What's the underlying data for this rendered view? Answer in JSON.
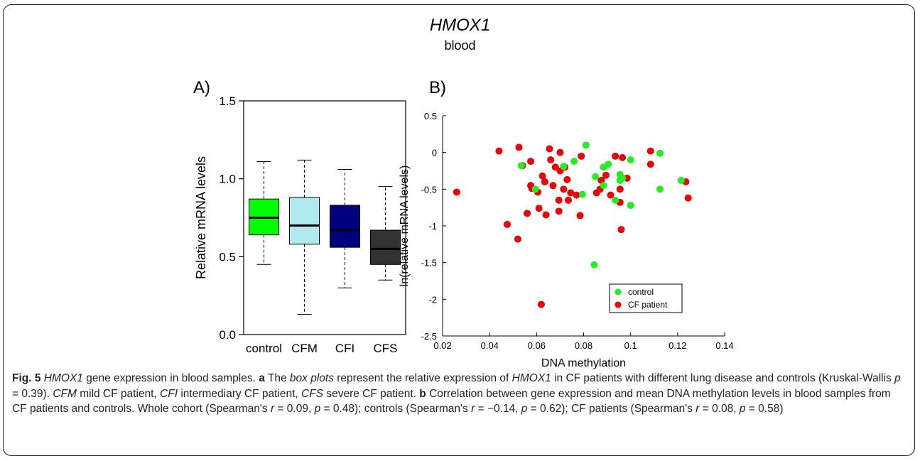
{
  "figure": {
    "gene_title": "HMOX1",
    "sample_title": "blood",
    "panel_a_label": "A)",
    "panel_b_label": "B)"
  },
  "colors": {
    "control_box": "#00ff00",
    "cfm_box": "#b0eaee",
    "cfi_box": "#00007f",
    "cfs_box": "#333333",
    "control_points": "#22ee22",
    "cf_points": "#ee0000"
  },
  "chart_data": [
    {
      "type": "box",
      "title": "",
      "xlabel": "",
      "ylabel": "Relative mRNA levels",
      "ylim": [
        0,
        1.5
      ],
      "yticks": [
        "0.0",
        "0.5",
        "1.0",
        "1.5"
      ],
      "categories": [
        "control",
        "CFM",
        "CFI",
        "CFS"
      ],
      "boxes": [
        {
          "name": "control",
          "whisker_low": 0.45,
          "q1": 0.64,
          "median": 0.75,
          "q3": 0.87,
          "whisker_high": 1.11,
          "color": "#00ff00"
        },
        {
          "name": "CFM",
          "whisker_low": 0.13,
          "q1": 0.58,
          "median": 0.7,
          "q3": 0.88,
          "whisker_high": 1.12,
          "color": "#b0eaee"
        },
        {
          "name": "CFI",
          "whisker_low": 0.3,
          "q1": 0.56,
          "median": 0.67,
          "q3": 0.83,
          "whisker_high": 1.06,
          "color": "#00007f"
        },
        {
          "name": "CFS",
          "whisker_low": 0.35,
          "q1": 0.45,
          "median": 0.55,
          "q3": 0.67,
          "whisker_high": 0.95,
          "color": "#333333"
        }
      ],
      "grid": false
    },
    {
      "type": "scatter",
      "title": "",
      "xlabel": "DNA methylation",
      "ylabel": "ln(relative mRNA levels)",
      "xlim": [
        0.02,
        0.14
      ],
      "ylim": [
        -2.5,
        0.5
      ],
      "xticks": [
        "0.02",
        "0.04",
        "0.06",
        "0.08",
        "0.1",
        "0.12",
        "0.14"
      ],
      "yticks": [
        "-2.5",
        "-2",
        "-1.5",
        "-1",
        "-0.5",
        "0",
        "0.5"
      ],
      "legend_position": "bottom-right",
      "grid": false,
      "series": [
        {
          "name": "control",
          "color": "#22ee22",
          "points": [
            [
              0.0535,
              -0.18
            ],
            [
              0.0595,
              -0.5
            ],
            [
              0.0715,
              -0.19
            ],
            [
              0.076,
              -0.12
            ],
            [
              0.0795,
              -0.57
            ],
            [
              0.081,
              0.1
            ],
            [
              0.085,
              -0.33
            ],
            [
              0.0885,
              -0.45
            ],
            [
              0.0885,
              -0.2
            ],
            [
              0.0905,
              -0.16
            ],
            [
              0.0935,
              -0.65
            ],
            [
              0.0955,
              -0.3
            ],
            [
              0.0965,
              -0.35
            ],
            [
              0.0955,
              -0.38
            ],
            [
              0.1,
              -0.72
            ],
            [
              0.1,
              -0.1
            ],
            [
              0.1125,
              -0.01
            ],
            [
              0.1125,
              -0.5
            ],
            [
              0.1215,
              -0.38
            ],
            [
              0.0845,
              -1.53
            ]
          ]
        },
        {
          "name": "CF patient",
          "color": "#ee0000",
          "points": [
            [
              0.026,
              -0.54
            ],
            [
              0.044,
              0.02
            ],
            [
              0.0475,
              -0.98
            ],
            [
              0.052,
              -1.18
            ],
            [
              0.0525,
              0.07
            ],
            [
              0.054,
              -0.18
            ],
            [
              0.056,
              -0.83
            ],
            [
              0.0575,
              -0.45
            ],
            [
              0.0575,
              -0.12
            ],
            [
              0.058,
              -0.49
            ],
            [
              0.0605,
              -0.54
            ],
            [
              0.061,
              -0.76
            ],
            [
              0.062,
              -2.07
            ],
            [
              0.0625,
              -0.32
            ],
            [
              0.0635,
              -0.4
            ],
            [
              0.064,
              -0.85
            ],
            [
              0.0655,
              0.05
            ],
            [
              0.066,
              -0.1
            ],
            [
              0.067,
              -0.45
            ],
            [
              0.068,
              -0.2
            ],
            [
              0.0695,
              -0.65
            ],
            [
              0.0695,
              -0.8
            ],
            [
              0.07,
              -0.25
            ],
            [
              0.07,
              0.0
            ],
            [
              0.0715,
              -0.5
            ],
            [
              0.072,
              -0.2
            ],
            [
              0.073,
              -0.37
            ],
            [
              0.0735,
              -0.65
            ],
            [
              0.0745,
              -0.55
            ],
            [
              0.077,
              -0.58
            ],
            [
              0.0785,
              -0.86
            ],
            [
              0.079,
              -0.05
            ],
            [
              0.0855,
              -0.55
            ],
            [
              0.087,
              -0.5
            ],
            [
              0.0875,
              -0.38
            ],
            [
              0.0895,
              -0.31
            ],
            [
              0.0915,
              -0.58
            ],
            [
              0.0935,
              -0.05
            ],
            [
              0.0955,
              -0.5
            ],
            [
              0.0955,
              -0.68
            ],
            [
              0.096,
              -1.05
            ],
            [
              0.0965,
              -0.07
            ],
            [
              0.0985,
              -0.35
            ],
            [
              0.1085,
              -0.16
            ],
            [
              0.1085,
              0.02
            ],
            [
              0.1235,
              -0.4
            ],
            [
              0.1245,
              -0.62
            ]
          ]
        }
      ]
    }
  ],
  "caption": {
    "fig_label": "Fig. 5",
    "gene": "HMOX1",
    "title_rest": " gene expression in blood samples. ",
    "a": "a",
    "a_text1": " The ",
    "box_plots": "box plots",
    "a_text2": " represent the relative expression of ",
    "a_text3": " in CF patients with different lung disease and controls (Kruskal-Wallis ",
    "p": "p",
    "a_p_value": " = 0.39). ",
    "cfm": "CFM",
    "cfm_text": " mild CF patient, ",
    "cfi": "CFI",
    "cfi_text": " intermediary CF patient, ",
    "cfs": "CFS",
    "cfs_text": " severe CF patient. ",
    "b": "b",
    "b_text1": " Correlation between gene expression and mean DNA methylation levels in blood samples from CF patients and controls. Whole cohort (Spearman's ",
    "r": "r",
    "b_whole_r": " = 0.09, ",
    "b_whole_p": " = 0.48); controls (Spearman's ",
    "b_ctrl_r": " = −0.14, ",
    "b_ctrl_p": " = 0.62); CF patients (Spearman's ",
    "b_cf_r": " = 0.08, ",
    "b_cf_p": " = 0.58)"
  }
}
